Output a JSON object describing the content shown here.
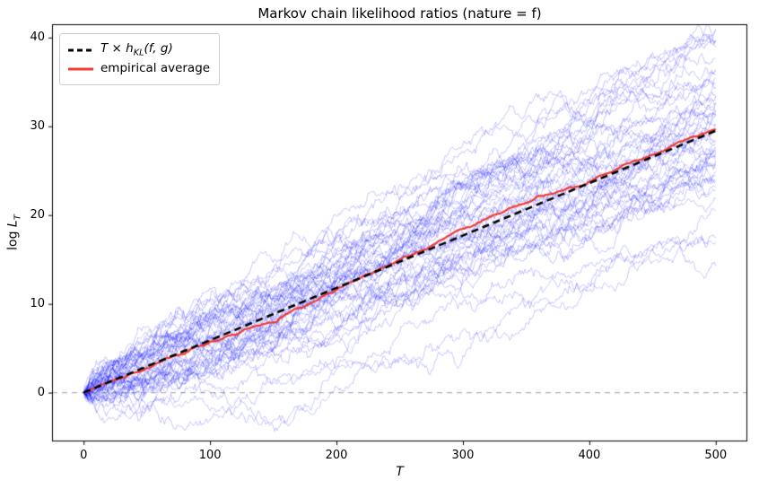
{
  "title": "Markov chain likelihood ratios (nature = f)",
  "xlabel": "T",
  "ylabel": {
    "pre": "log ",
    "var": "L",
    "sub": "T"
  },
  "legend": {
    "kl": {
      "t": "T",
      "times": " × ",
      "h": "h",
      "sub": "KL",
      "args": "(f, g)"
    },
    "avg": "empirical average"
  },
  "colors": {
    "spine": "#000000",
    "ticks": "#000000",
    "kl_line": "#000000",
    "avg_line": "#f23b34",
    "trajectory": "#0000ff",
    "zero_line": "#b3b3b3",
    "background": "#ffffff"
  },
  "chart_data": {
    "type": "line",
    "title": "Markov chain likelihood ratios (nature = f)",
    "xlabel": "T",
    "ylabel": "log L_T",
    "xlim": [
      -25,
      525
    ],
    "ylim": [
      -5.5,
      41.5
    ],
    "x_ticks": [
      "0",
      "100",
      "200",
      "300",
      "400",
      "500"
    ],
    "x_tick_values": [
      0,
      100,
      200,
      300,
      400,
      500
    ],
    "y_ticks": [
      "0",
      "10",
      "20",
      "30",
      "40"
    ],
    "y_tick_values": [
      0,
      10,
      20,
      30,
      40
    ],
    "grid": false,
    "legend_position": "upper left",
    "zero_line": {
      "y": 0,
      "style": "dashed"
    },
    "kl_line": {
      "label": "T × h_KL(f, g)",
      "rate_per_step": 0.059,
      "x": [
        0,
        500
      ],
      "y": [
        0,
        29.5
      ],
      "style": "dashed",
      "linewidth": 2.6
    },
    "empirical_average": {
      "label": "empirical average",
      "x": [
        0,
        500
      ],
      "y_approx": [
        0,
        29.5
      ],
      "definition": "mean of all simulated log-likelihood-ratio trajectories",
      "linewidth": 2.2
    },
    "trajectories": {
      "count": 50,
      "steps": 500,
      "start_value": 0,
      "drift_per_step": 0.059,
      "step_std": 0.3,
      "seed": 42,
      "alpha": 0.28,
      "linewidth": 0.8,
      "end_value_range_approx": [
        13,
        40
      ]
    }
  }
}
